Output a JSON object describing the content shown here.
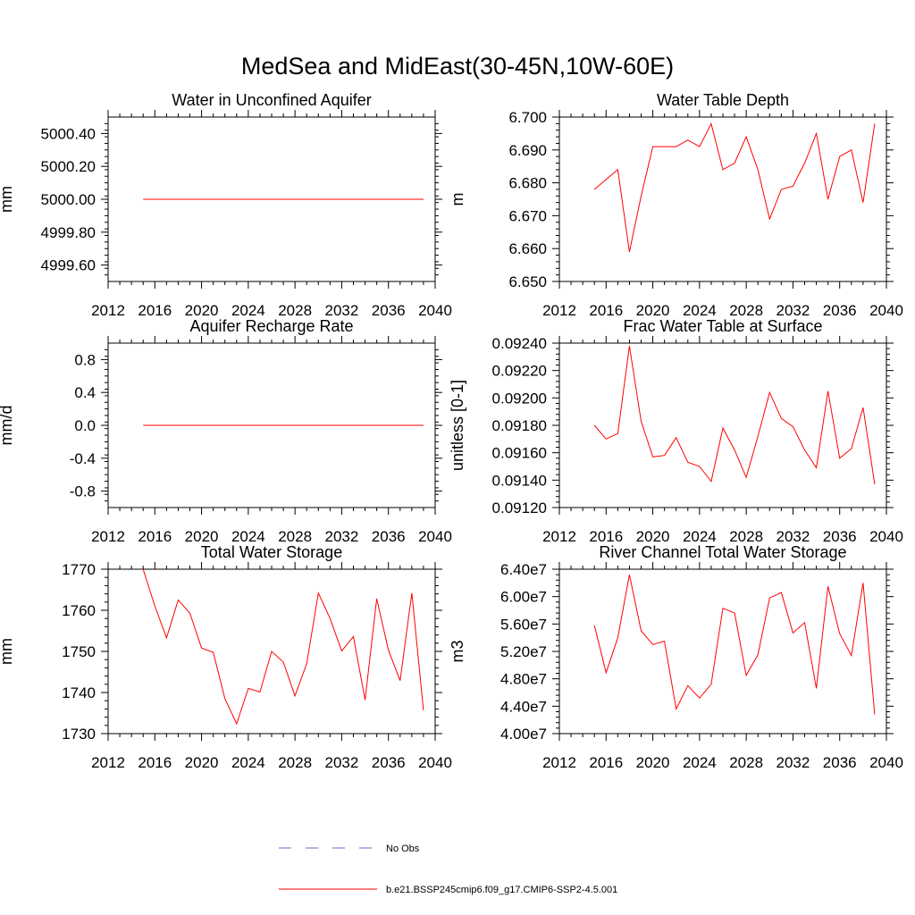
{
  "figure": {
    "title": "MedSea and MidEast(30-45N,10W-60E)"
  },
  "chart_data": [
    {
      "type": "line",
      "title": "Water in Unconfined Aquifer",
      "ylabel": "mm",
      "xlim": [
        2012,
        2040
      ],
      "ylim": [
        4999.5,
        5000.5
      ],
      "xticks": [
        2012,
        2016,
        2020,
        2024,
        2028,
        2032,
        2036,
        2040
      ],
      "xtick_labels": [
        "2012",
        "2016",
        "2020",
        "2024",
        "2028",
        "2032",
        "2036",
        "2040"
      ],
      "yticks": [
        4999.6,
        4999.8,
        5000.0,
        5000.2,
        5000.4
      ],
      "ytick_labels": [
        "4999.60",
        "4999.80",
        "5000.00",
        "5000.20",
        "5000.40"
      ],
      "series": [
        {
          "name": "b.e21.BSSP245cmip6.f09_g17.CMIP6-SSP2-4.5.001",
          "color": "#ff0000",
          "x": [
            2015,
            2016,
            2017,
            2018,
            2019,
            2020,
            2021,
            2022,
            2023,
            2024,
            2025,
            2026,
            2027,
            2028,
            2029,
            2030,
            2031,
            2032,
            2033,
            2034,
            2035,
            2036,
            2037,
            2038,
            2039
          ],
          "y": [
            5000.0,
            5000.0,
            5000.0,
            5000.0,
            5000.0,
            5000.0,
            5000.0,
            5000.0,
            5000.0,
            5000.0,
            5000.0,
            5000.0,
            5000.0,
            5000.0,
            5000.0,
            5000.0,
            5000.0,
            5000.0,
            5000.0,
            5000.0,
            5000.0,
            5000.0,
            5000.0,
            5000.0,
            5000.0
          ]
        }
      ]
    },
    {
      "type": "line",
      "title": "Water Table Depth",
      "ylabel": "m",
      "xlim": [
        2012,
        2040
      ],
      "ylim": [
        6.65,
        6.7
      ],
      "xticks": [
        2012,
        2016,
        2020,
        2024,
        2028,
        2032,
        2036,
        2040
      ],
      "xtick_labels": [
        "2012",
        "2016",
        "2020",
        "2024",
        "2028",
        "2032",
        "2036",
        "2040"
      ],
      "yticks": [
        6.65,
        6.66,
        6.67,
        6.68,
        6.69,
        6.7
      ],
      "ytick_labels": [
        "6.650",
        "6.660",
        "6.670",
        "6.680",
        "6.690",
        "6.700"
      ],
      "series": [
        {
          "name": "b.e21.BSSP245cmip6.f09_g17.CMIP6-SSP2-4.5.001",
          "color": "#ff0000",
          "x": [
            2015,
            2016,
            2017,
            2018,
            2019,
            2020,
            2021,
            2022,
            2023,
            2024,
            2025,
            2026,
            2027,
            2028,
            2029,
            2030,
            2031,
            2032,
            2033,
            2034,
            2035,
            2036,
            2037,
            2038,
            2039
          ],
          "y": [
            6.678,
            6.681,
            6.684,
            6.659,
            6.676,
            6.691,
            6.691,
            6.691,
            6.693,
            6.691,
            6.698,
            6.684,
            6.686,
            6.694,
            6.684,
            6.669,
            6.678,
            6.679,
            6.686,
            6.695,
            6.675,
            6.688,
            6.69,
            6.674,
            6.698
          ]
        }
      ]
    },
    {
      "type": "line",
      "title": "Aquifer Recharge Rate",
      "ylabel": "mm/d",
      "xlim": [
        2012,
        2040
      ],
      "ylim": [
        -1.0,
        1.0
      ],
      "xticks": [
        2012,
        2016,
        2020,
        2024,
        2028,
        2032,
        2036,
        2040
      ],
      "xtick_labels": [
        "2012",
        "2016",
        "2020",
        "2024",
        "2028",
        "2032",
        "2036",
        "2040"
      ],
      "yticks": [
        -0.8,
        -0.4,
        0.0,
        0.4,
        0.8
      ],
      "ytick_labels": [
        "-0.8",
        "-0.4",
        "0.0",
        "0.4",
        "0.8"
      ],
      "series": [
        {
          "name": "b.e21.BSSP245cmip6.f09_g17.CMIP6-SSP2-4.5.001",
          "color": "#ff0000",
          "x": [
            2015,
            2016,
            2017,
            2018,
            2019,
            2020,
            2021,
            2022,
            2023,
            2024,
            2025,
            2026,
            2027,
            2028,
            2029,
            2030,
            2031,
            2032,
            2033,
            2034,
            2035,
            2036,
            2037,
            2038,
            2039
          ],
          "y": [
            0.0,
            0.0,
            0.0,
            0.0,
            0.0,
            0.0,
            0.0,
            0.0,
            0.0,
            0.0,
            0.0,
            0.0,
            0.0,
            0.0,
            0.0,
            0.0,
            0.0,
            0.0,
            0.0,
            0.0,
            0.0,
            0.0,
            0.0,
            0.0,
            0.0
          ]
        }
      ]
    },
    {
      "type": "line",
      "title": "Frac Water Table at Surface",
      "ylabel": "unitless [0-1]",
      "xlim": [
        2012,
        2040
      ],
      "ylim": [
        0.0912,
        0.0924
      ],
      "xticks": [
        2012,
        2016,
        2020,
        2024,
        2028,
        2032,
        2036,
        2040
      ],
      "xtick_labels": [
        "2012",
        "2016",
        "2020",
        "2024",
        "2028",
        "2032",
        "2036",
        "2040"
      ],
      "yticks": [
        0.0912,
        0.0914,
        0.0916,
        0.0918,
        0.092,
        0.0922,
        0.0924
      ],
      "ytick_labels": [
        "0.09120",
        "0.09140",
        "0.09160",
        "0.09180",
        "0.09200",
        "0.09220",
        "0.09240"
      ],
      "series": [
        {
          "name": "b.e21.BSSP245cmip6.f09_g17.CMIP6-SSP2-4.5.001",
          "color": "#ff0000",
          "x": [
            2015,
            2016,
            2017,
            2018,
            2019,
            2020,
            2021,
            2022,
            2023,
            2024,
            2025,
            2026,
            2027,
            2028,
            2029,
            2030,
            2031,
            2032,
            2033,
            2034,
            2035,
            2036,
            2037,
            2038,
            2039
          ],
          "y": [
            0.0918,
            0.0917,
            0.09174,
            0.09238,
            0.09183,
            0.09157,
            0.09158,
            0.09171,
            0.09153,
            0.0915,
            0.09139,
            0.09178,
            0.09162,
            0.09142,
            0.09172,
            0.09204,
            0.09185,
            0.09179,
            0.09162,
            0.09149,
            0.09205,
            0.09156,
            0.09163,
            0.09193,
            0.09137
          ]
        }
      ]
    },
    {
      "type": "line",
      "title": "Total Water Storage",
      "ylabel": "mm",
      "xlim": [
        2012,
        2040
      ],
      "ylim": [
        1730,
        1770
      ],
      "xticks": [
        2012,
        2016,
        2020,
        2024,
        2028,
        2032,
        2036,
        2040
      ],
      "xtick_labels": [
        "2012",
        "2016",
        "2020",
        "2024",
        "2028",
        "2032",
        "2036",
        "2040"
      ],
      "yticks": [
        1730,
        1740,
        1750,
        1760,
        1770
      ],
      "ytick_labels": [
        "1730",
        "1740",
        "1750",
        "1760",
        "1770"
      ],
      "series": [
        {
          "name": "b.e21.BSSP245cmip6.f09_g17.CMIP6-SSP2-4.5.001",
          "color": "#ff0000",
          "x": [
            2015,
            2016,
            2017,
            2018,
            2019,
            2020,
            2021,
            2022,
            2023,
            2024,
            2025,
            2026,
            2027,
            2028,
            2029,
            2030,
            2031,
            2032,
            2033,
            2034,
            2035,
            2036,
            2037,
            2038,
            2039
          ],
          "y": [
            1770.0,
            1761.0,
            1753.3,
            1762.5,
            1759.3,
            1750.8,
            1749.8,
            1738.5,
            1732.4,
            1741.0,
            1740.1,
            1750.0,
            1747.4,
            1739.2,
            1747.0,
            1764.2,
            1758.0,
            1750.1,
            1753.6,
            1738.2,
            1762.8,
            1750.3,
            1742.9,
            1764.2,
            1735.7
          ]
        }
      ]
    },
    {
      "type": "line",
      "title": "River Channel Total Water Storage",
      "ylabel": "m3",
      "xlim": [
        2012,
        2040
      ],
      "ylim": [
        40000000,
        64000000
      ],
      "xticks": [
        2012,
        2016,
        2020,
        2024,
        2028,
        2032,
        2036,
        2040
      ],
      "xtick_labels": [
        "2012",
        "2016",
        "2020",
        "2024",
        "2028",
        "2032",
        "2036",
        "2040"
      ],
      "yticks": [
        40000000,
        44000000,
        48000000,
        52000000,
        56000000,
        60000000,
        64000000
      ],
      "ytick_labels": [
        "4.00e7",
        "4.40e7",
        "4.80e7",
        "5.20e7",
        "5.60e7",
        "6.00e7",
        "6.40e7"
      ],
      "series": [
        {
          "name": "b.e21.BSSP245cmip6.f09_g17.CMIP6-SSP2-4.5.001",
          "color": "#ff0000",
          "x": [
            2015,
            2016,
            2017,
            2018,
            2019,
            2020,
            2021,
            2022,
            2023,
            2024,
            2025,
            2026,
            2027,
            2028,
            2029,
            2030,
            2031,
            2032,
            2033,
            2034,
            2035,
            2036,
            2037,
            2038,
            2039
          ],
          "y": [
            55800000,
            48900000,
            54000000,
            63200000,
            55000000,
            53000000,
            53500000,
            43600000,
            47000000,
            45200000,
            47200000,
            58300000,
            57600000,
            48500000,
            51500000,
            59800000,
            60600000,
            54700000,
            56200000,
            46600000,
            61500000,
            54600000,
            51400000,
            62000000,
            42800000
          ]
        }
      ]
    }
  ],
  "legend": {
    "placement": "bottom-center",
    "items": [
      {
        "label": "No Obs",
        "color": "#6a6ac8",
        "style": "dashed"
      },
      {
        "label": "b.e21.BSSP245cmip6.f09_g17.CMIP6-SSP2-4.5.001",
        "color": "#ff0000",
        "style": "solid"
      }
    ]
  }
}
